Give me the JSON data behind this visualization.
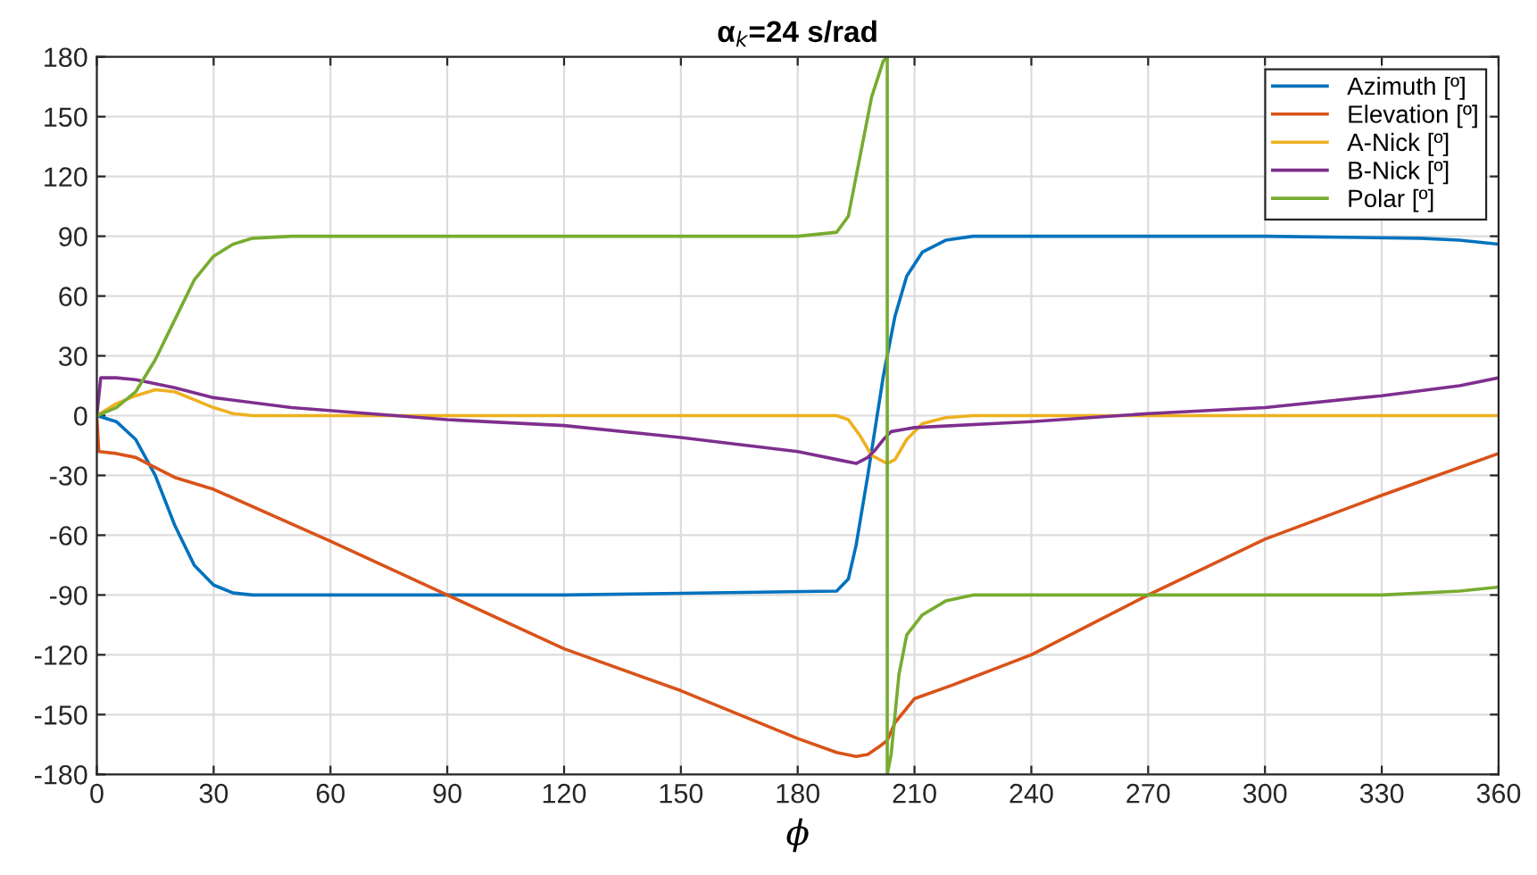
{
  "chart_data": {
    "type": "line",
    "title": "α$_{k}$=24 s/rad",
    "xlabel": "ϕ",
    "xlim": [
      0,
      360
    ],
    "xticks": [
      0,
      30,
      60,
      90,
      120,
      150,
      180,
      210,
      240,
      270,
      300,
      330,
      360
    ],
    "ylim": [
      -180,
      180
    ],
    "yticks": [
      -180,
      -150,
      -120,
      -90,
      -60,
      -30,
      0,
      30,
      60,
      90,
      120,
      150,
      180
    ],
    "grid": true,
    "legend": "top right",
    "line_style": "solid",
    "marker": "none",
    "series": [
      {
        "name": "Azimuth [º]",
        "color": "#0072bd",
        "x": [
          0,
          5,
          10,
          15,
          20,
          25,
          30,
          35,
          40,
          60,
          120,
          190,
          193,
          195,
          198,
          200,
          202,
          205,
          208,
          212,
          218,
          225,
          240,
          300,
          340,
          350,
          360
        ],
        "values": [
          0,
          -3,
          -12,
          -30,
          -55,
          -75,
          -85,
          -89,
          -90,
          -90,
          -90,
          -88,
          -82,
          -65,
          -30,
          -5,
          20,
          50,
          70,
          82,
          88,
          90,
          90,
          90,
          89,
          88,
          86
        ]
      },
      {
        "name": "Elevation [º]",
        "color": "#d95319",
        "x": [
          0,
          0.5,
          5,
          10,
          15,
          20,
          30,
          60,
          90,
          120,
          150,
          180,
          190,
          195,
          198,
          201,
          203,
          205,
          210,
          220,
          240,
          270,
          300,
          330,
          360
        ],
        "values": [
          0,
          -18,
          -19,
          -21,
          -26,
          -31,
          -37,
          -63,
          -90,
          -117,
          -138,
          -162,
          -169,
          -171,
          -170,
          -166,
          -163,
          -154,
          -142,
          -135,
          -120,
          -90,
          -62,
          -40,
          -19
        ]
      },
      {
        "name": "A-Nick [º]",
        "color": "#edb120",
        "x": [
          0,
          5,
          10,
          15,
          20,
          25,
          30,
          35,
          40,
          190,
          193,
          196,
          199,
          201,
          203,
          205,
          208,
          212,
          218,
          225,
          360
        ],
        "values": [
          0,
          6,
          10,
          13,
          12,
          8,
          4,
          1,
          0,
          0,
          -2,
          -10,
          -20,
          -22,
          -24,
          -22,
          -12,
          -4,
          -1,
          0,
          0
        ]
      },
      {
        "name": "B-Nick [º]",
        "color": "#7e2f8e",
        "x": [
          0,
          1,
          5,
          10,
          20,
          30,
          50,
          90,
          120,
          150,
          180,
          190,
          195,
          198,
          200,
          202,
          204,
          210,
          240,
          270,
          300,
          330,
          350,
          360
        ],
        "values": [
          0,
          19,
          19,
          18,
          14,
          9,
          4,
          -2,
          -5,
          -11,
          -18,
          -22,
          -24,
          -21,
          -17,
          -12,
          -8,
          -6,
          -3,
          1,
          4,
          10,
          15,
          19
        ]
      },
      {
        "name": "Polar [º]",
        "color": "#77ac30",
        "x": [
          0,
          5,
          10,
          15,
          20,
          25,
          30,
          35,
          40,
          50,
          180,
          190,
          193,
          196,
          199,
          202,
          203,
          203,
          204,
          206,
          208,
          212,
          218,
          225,
          330,
          350,
          360
        ],
        "values": [
          0,
          4,
          12,
          28,
          48,
          68,
          80,
          86,
          89,
          90,
          90,
          92,
          100,
          130,
          160,
          178,
          180,
          -180,
          -170,
          -130,
          -110,
          -100,
          -93,
          -90,
          -90,
          -88,
          -86
        ]
      }
    ]
  }
}
